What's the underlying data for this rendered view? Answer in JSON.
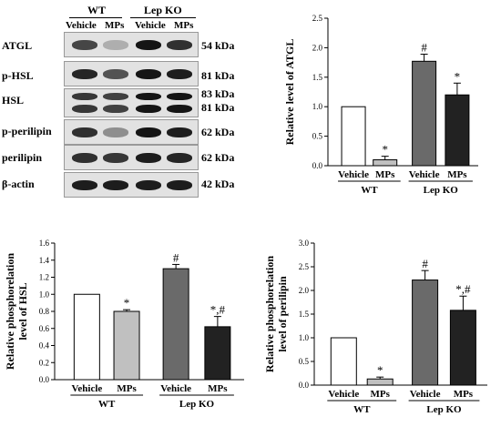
{
  "blot": {
    "group_headers": [
      {
        "label": "WT"
      },
      {
        "label": "Lep KO"
      }
    ],
    "lane_headers": [
      {
        "label": "Vehicle"
      },
      {
        "label": "MPs"
      },
      {
        "label": "Vehicle"
      },
      {
        "label": "MPs"
      }
    ],
    "rows": [
      {
        "label": "ATGL",
        "markers": [
          "54 kDa"
        ],
        "intensity": [
          0.72,
          0.12,
          1.0,
          0.85
        ]
      },
      {
        "label": "p-HSL",
        "markers": [
          "81 kDa"
        ],
        "intensity": [
          0.9,
          0.65,
          1.0,
          0.95
        ]
      },
      {
        "label": "HSL",
        "markers": [
          "83 kDa",
          "81 kDa"
        ],
        "intensity": [
          0.8,
          0.75,
          1.0,
          1.0
        ]
      },
      {
        "label": "p-perilipin",
        "markers": [
          "62 kDa"
        ],
        "intensity": [
          0.85,
          0.3,
          1.0,
          0.95
        ]
      },
      {
        "label": "perilipin",
        "markers": [
          "62 kDa"
        ],
        "intensity": [
          0.85,
          0.8,
          0.95,
          0.9
        ]
      },
      {
        "label": "β-actin",
        "markers": [
          "42 kDa"
        ],
        "intensity": [
          0.95,
          0.95,
          0.95,
          0.95
        ]
      }
    ]
  },
  "chart_data": [
    {
      "type": "bar",
      "ylabel": "Relative level of ATGL",
      "categories": [
        "Vehicle",
        "MPs",
        "Vehicle",
        "MPs"
      ],
      "groups": [
        {
          "label": "WT"
        },
        {
          "label": "Lep KO"
        }
      ],
      "values": [
        1.0,
        0.1,
        1.77,
        1.2
      ],
      "errors": [
        0,
        0.06,
        0.12,
        0.2
      ],
      "annotations": [
        "",
        "*",
        "#",
        "*"
      ],
      "ylim": [
        0,
        2.5
      ],
      "yticks": [
        0,
        0.5,
        1.0,
        1.5,
        2.0,
        2.5
      ],
      "tick_labels": [
        "0.0",
        "0.5",
        "1.0",
        "1.5",
        "2.0",
        "2.5"
      ],
      "colors": [
        "#ffffff",
        "#c0c0c0",
        "#6a6a6a",
        "#222222"
      ]
    },
    {
      "type": "bar",
      "ylabel": "Relative phosphorelation level of HSL",
      "categories": [
        "Vehicle",
        "MPs",
        "Vehicle",
        "MPs"
      ],
      "groups": [
        {
          "label": "WT"
        },
        {
          "label": "Lep KO"
        }
      ],
      "values": [
        1.0,
        0.8,
        1.3,
        0.62
      ],
      "errors": [
        0,
        0.02,
        0.05,
        0.12
      ],
      "annotations": [
        "",
        "*",
        "#",
        "*,#"
      ],
      "ylim": [
        0,
        1.6
      ],
      "yticks": [
        0,
        0.2,
        0.4,
        0.6,
        0.8,
        1.0,
        1.2,
        1.4,
        1.6
      ],
      "tick_labels": [
        "0.0",
        "0.2",
        "0.4",
        "0.6",
        "0.8",
        "1.0",
        "1.2",
        "1.4",
        "1.6"
      ],
      "colors": [
        "#ffffff",
        "#c0c0c0",
        "#6a6a6a",
        "#222222"
      ]
    },
    {
      "type": "bar",
      "ylabel": "Relative phosphorelation level of perilipin",
      "categories": [
        "Vehicle",
        "MPs",
        "Vehicle",
        "MPs"
      ],
      "groups": [
        {
          "label": "WT"
        },
        {
          "label": "Lep KO"
        }
      ],
      "values": [
        1.0,
        0.13,
        2.22,
        1.58
      ],
      "errors": [
        0,
        0.04,
        0.2,
        0.3
      ],
      "annotations": [
        "",
        "*",
        "#",
        "*,#"
      ],
      "ylim": [
        0,
        3.0
      ],
      "yticks": [
        0,
        0.5,
        1.0,
        1.5,
        2.0,
        2.5,
        3.0
      ],
      "tick_labels": [
        "0.0",
        "0.5",
        "1.0",
        "1.5",
        "2.0",
        "2.5",
        "3.0"
      ],
      "colors": [
        "#ffffff",
        "#c0c0c0",
        "#6a6a6a",
        "#222222"
      ]
    }
  ]
}
